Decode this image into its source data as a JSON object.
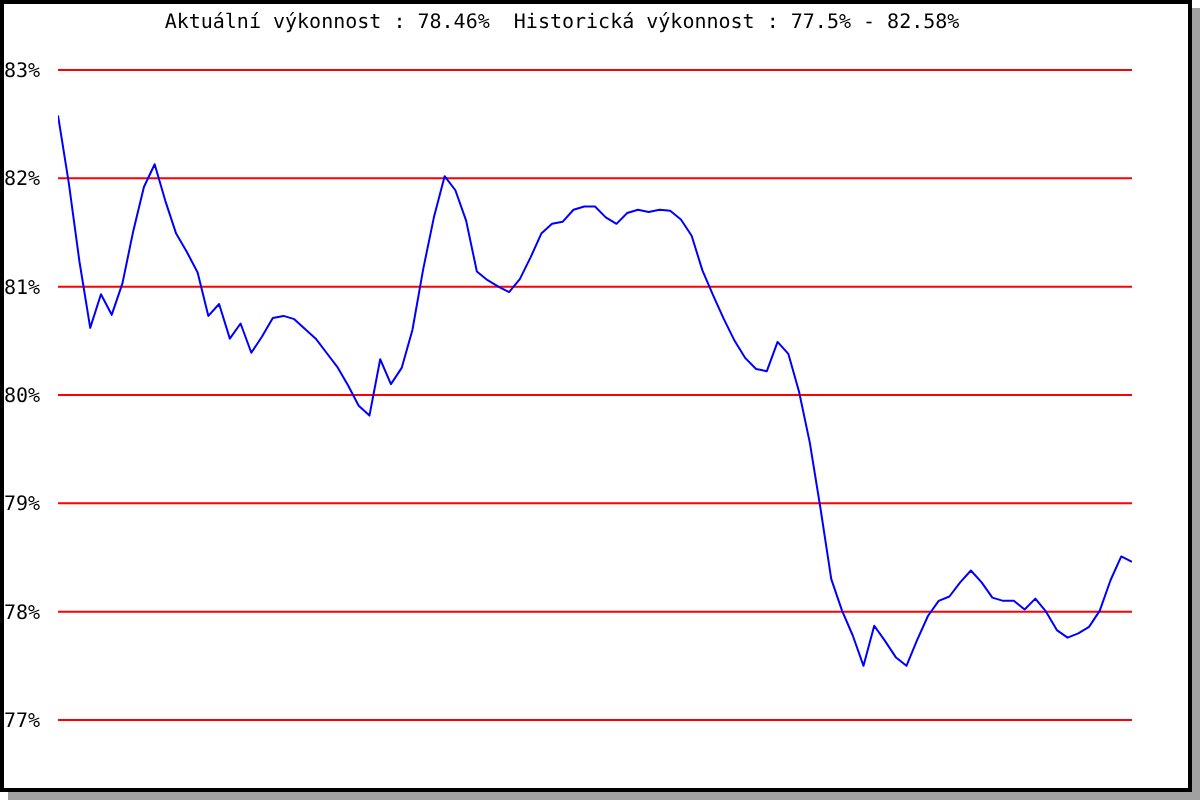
{
  "chart_data": {
    "type": "line",
    "title": "Aktuální výkonnost : 78.46%  Historická výkonnost : 77.5% - 82.58%",
    "categories": [
      null,
      null,
      null,
      null,
      null,
      null,
      null,
      null,
      null,
      null,
      null,
      null,
      null,
      null,
      null,
      null,
      null,
      null,
      null,
      null,
      null,
      null,
      null,
      null,
      null,
      null,
      null,
      null,
      null,
      null,
      null,
      null,
      null,
      null,
      null,
      null,
      null,
      null,
      null,
      null,
      null,
      null,
      null,
      null,
      null,
      null,
      null,
      null,
      null,
      null,
      null,
      null,
      null,
      null,
      null,
      null,
      null,
      null,
      null,
      null,
      null,
      null,
      null,
      null,
      null,
      null,
      null,
      null,
      null,
      null,
      null,
      null,
      null,
      null,
      null,
      null,
      null,
      null,
      null,
      null,
      null,
      null,
      null,
      null,
      null,
      null,
      null,
      null,
      null,
      null,
      null,
      null,
      null,
      null,
      null,
      null,
      null,
      null,
      null,
      null,
      null
    ],
    "series": [
      {
        "color": "#0000ff",
        "values": [
          82.58,
          81.96,
          81.23,
          80.62,
          80.93,
          80.74,
          81.03,
          81.51,
          81.92,
          82.13,
          81.79,
          81.49,
          81.32,
          81.13,
          80.73,
          80.84,
          80.52,
          80.66,
          80.39,
          80.54,
          80.71,
          80.73,
          80.7,
          80.61,
          80.52,
          80.39,
          80.26,
          80.09,
          79.9,
          79.81,
          80.33,
          80.1,
          80.25,
          80.6,
          81.16,
          81.64,
          82.02,
          81.89,
          81.61,
          81.14,
          81.06,
          81.0,
          80.95,
          81.07,
          81.27,
          81.49,
          81.58,
          81.6,
          81.71,
          81.74,
          81.74,
          81.64,
          81.58,
          81.68,
          81.71,
          81.69,
          81.71,
          81.7,
          81.62,
          81.47,
          81.15,
          80.92,
          80.7,
          80.5,
          80.34,
          80.24,
          80.22,
          80.49,
          80.38,
          80.03,
          79.56,
          78.95,
          78.3,
          78.01,
          77.78,
          77.5,
          77.87,
          77.73,
          77.58,
          77.5,
          77.74,
          77.96,
          78.1,
          78.14,
          78.27,
          78.38,
          78.27,
          78.13,
          78.1,
          78.1,
          78.02,
          78.12,
          78.0,
          77.83,
          77.76,
          77.8,
          77.86,
          78.01,
          78.29,
          78.51,
          78.46
        ]
      }
    ],
    "ylim": [
      77,
      83
    ],
    "yticks": [
      {
        "value": 77,
        "label": "77%"
      },
      {
        "value": 78,
        "label": "78%"
      },
      {
        "value": 79,
        "label": "79%"
      },
      {
        "value": 80,
        "label": "80%"
      },
      {
        "value": 81,
        "label": "81%"
      },
      {
        "value": 82,
        "label": "82%"
      },
      {
        "value": 83,
        "label": "83%"
      }
    ],
    "grid": "y",
    "marker": "none",
    "tick_labels": "y"
  }
}
